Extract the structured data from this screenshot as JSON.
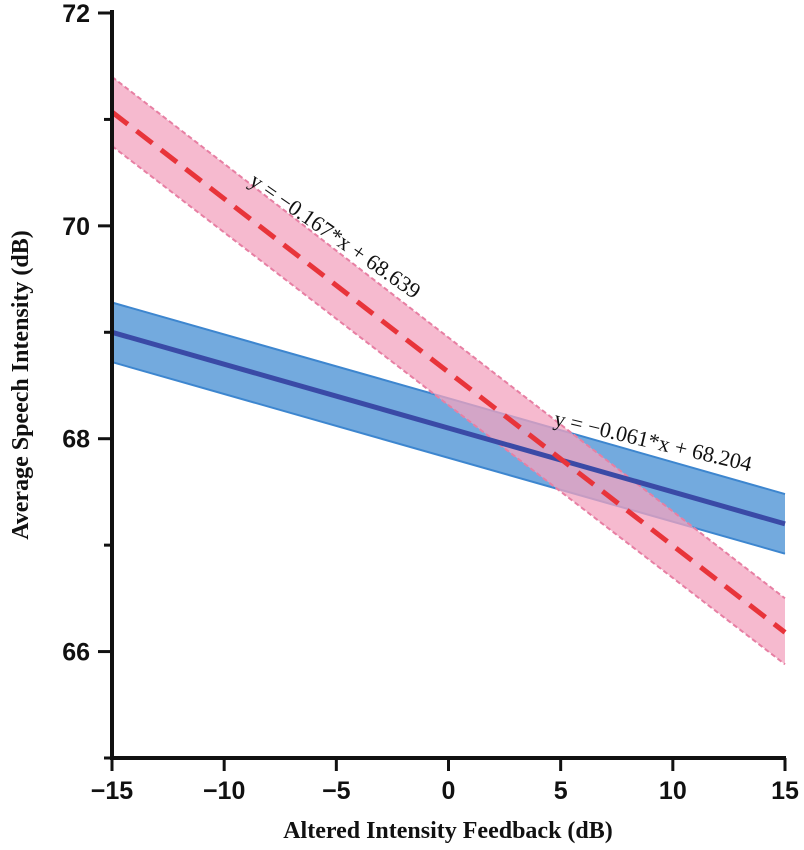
{
  "chart_data": {
    "type": "line",
    "title": "",
    "xlabel": "Altered Intensity Feedback (dB)",
    "ylabel": "Average Speech Intensity (dB)",
    "xlim": [
      -15,
      15
    ],
    "ylim": [
      65,
      72
    ],
    "x_ticks": [
      -15,
      -10,
      -5,
      0,
      5,
      10,
      15
    ],
    "x_tick_labels": [
      "−15",
      "−10",
      "−5",
      "0",
      "5",
      "10",
      "15"
    ],
    "y_ticks": [
      66,
      68,
      70,
      72
    ],
    "y_tick_labels": [
      "66",
      "68",
      "70",
      "72"
    ],
    "y_minor_ticks": [
      65,
      67,
      69,
      71
    ],
    "grid": false,
    "legend": "none",
    "series": [
      {
        "line_style": "solid",
        "color": "#3a4aa6",
        "band_color": "#5b9bd8",
        "x": [
          -15,
          15
        ],
        "y": [
          69.0,
          67.2
        ],
        "ci_lower": [
          68.72,
          66.92
        ],
        "ci_upper": [
          69.28,
          67.48
        ],
        "annotation": "y = −0.061*x + 68.204"
      },
      {
        "line_style": "dashed",
        "color": "#e8343a",
        "band_color": "#f3a3bf",
        "x": [
          -15,
          15
        ],
        "y": [
          71.07,
          66.18
        ],
        "ci_lower": [
          70.75,
          65.88
        ],
        "ci_upper": [
          71.4,
          66.5
        ],
        "annotation": "y = −0.167*x + 68.639"
      }
    ]
  }
}
